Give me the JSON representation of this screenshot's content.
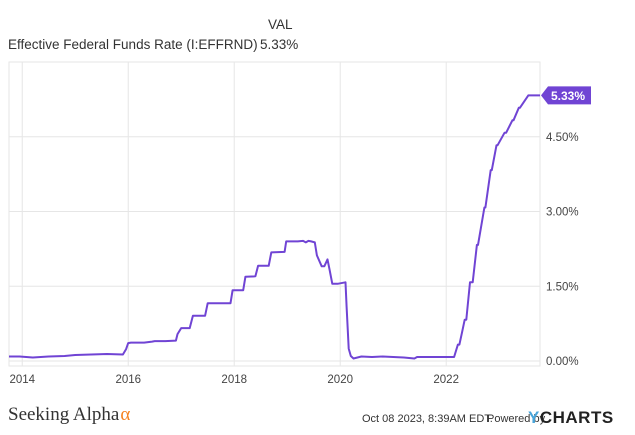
{
  "header": {
    "val_label": "VAL",
    "series_name": "Effective Federal Funds Rate (I:EFFRND)",
    "series_value": "5.33%"
  },
  "footer": {
    "brand": "Seeking Alpha",
    "brand_symbol": "α",
    "timestamp": "Oct 08 2023, 8:39AM EDT.",
    "powered_by": "Powered by",
    "ycharts_y": "Y",
    "ycharts_rest": "CHARTS"
  },
  "chart_data": {
    "type": "line",
    "title": "",
    "xlabel": "",
    "ylabel": "",
    "xlim": [
      2013.75,
      2023.77
    ],
    "ylim": [
      -0.1,
      6.0
    ],
    "grid": true,
    "y_ticks": [
      0,
      1.5,
      3.0,
      4.5
    ],
    "y_tick_labels": [
      "0.00%",
      "1.50%",
      "3.00%",
      "4.50%"
    ],
    "x_ticks": [
      2014,
      2016,
      2018,
      2020,
      2022
    ],
    "x_tick_labels": [
      "2014",
      "2016",
      "2018",
      "2020",
      "2022"
    ],
    "last_value_label": "5.33%",
    "colors": {
      "line": "#7044d4",
      "grid": "#e6e6e6",
      "tag_bg": "#7044d4",
      "tag_text": "#ffffff"
    },
    "series": [
      {
        "x": [
          2013.75,
          2013.95,
          2014.2,
          2014.5,
          2014.8,
          2015.0,
          2015.3,
          2015.6,
          2015.9,
          2015.96,
          2016.0,
          2016.05,
          2016.3,
          2016.45,
          2016.5,
          2016.7,
          2016.9,
          2016.93,
          2017.0,
          2017.16,
          2017.22,
          2017.45,
          2017.5,
          2017.7,
          2017.93,
          2017.97,
          2018.17,
          2018.21,
          2018.4,
          2018.45,
          2018.65,
          2018.7,
          2018.95,
          2018.98,
          2019.2,
          2019.3,
          2019.35,
          2019.4,
          2019.45,
          2019.52,
          2019.56,
          2019.65,
          2019.7,
          2019.76,
          2019.8,
          2019.85,
          2019.95,
          2020.1,
          2020.12,
          2020.16,
          2020.2,
          2020.25,
          2020.4,
          2020.6,
          2020.8,
          2021.0,
          2021.2,
          2021.4,
          2021.45,
          2021.6,
          2021.8,
          2021.95,
          2022.15,
          2022.22,
          2022.25,
          2022.3,
          2022.35,
          2022.38,
          2022.45,
          2022.5,
          2022.58,
          2022.6,
          2022.72,
          2022.74,
          2022.84,
          2022.86,
          2022.95,
          2022.97,
          2023.1,
          2023.13,
          2023.25,
          2023.27,
          2023.37,
          2023.39,
          2023.55,
          2023.58,
          2023.77
        ],
        "y": [
          0.09,
          0.09,
          0.07,
          0.09,
          0.1,
          0.12,
          0.13,
          0.14,
          0.13,
          0.24,
          0.36,
          0.37,
          0.37,
          0.39,
          0.4,
          0.4,
          0.41,
          0.54,
          0.66,
          0.66,
          0.91,
          0.91,
          1.16,
          1.16,
          1.16,
          1.42,
          1.42,
          1.69,
          1.7,
          1.91,
          1.91,
          2.18,
          2.19,
          2.4,
          2.4,
          2.41,
          2.38,
          2.41,
          2.4,
          2.38,
          2.12,
          1.9,
          1.9,
          2.04,
          1.83,
          1.55,
          1.55,
          1.58,
          1.09,
          0.25,
          0.1,
          0.05,
          0.09,
          0.08,
          0.09,
          0.08,
          0.07,
          0.05,
          0.08,
          0.08,
          0.08,
          0.08,
          0.08,
          0.33,
          0.33,
          0.58,
          0.83,
          0.83,
          1.58,
          1.58,
          2.33,
          2.33,
          3.08,
          3.08,
          3.83,
          3.83,
          4.33,
          4.33,
          4.58,
          4.58,
          4.83,
          4.83,
          5.08,
          5.08,
          5.33,
          5.33,
          5.33
        ]
      }
    ]
  }
}
